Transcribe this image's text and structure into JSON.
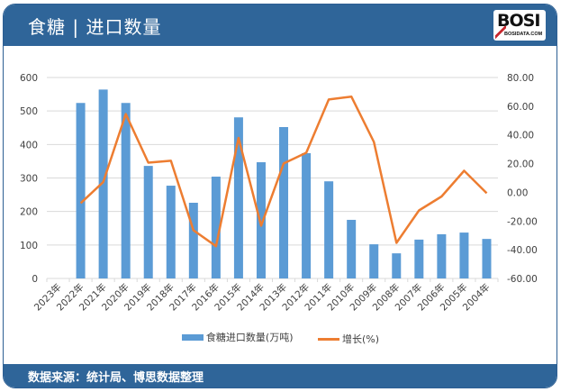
{
  "header": {
    "title": "食糖 | 进口数量",
    "logo_text": "BOSI",
    "logo_subtext": "BOSIDATA.COM"
  },
  "footer": {
    "source": "数据来源：统计局、博思数据整理"
  },
  "legend": {
    "bar_label": "食糖进口数量(万吨)",
    "line_label": "增长(%)"
  },
  "colors": {
    "header": "#2f6599",
    "bar": "#5b9bd5",
    "line": "#ed7d31",
    "grid": "#d9d9d9"
  },
  "chart_data": {
    "type": "bar+line",
    "title": "食糖 | 进口数量",
    "categories": [
      "2023年",
      "2022年",
      "2021年",
      "2020年",
      "2019年",
      "2018年",
      "2017年",
      "2016年",
      "2015年",
      "2014年",
      "2013年",
      "2012年",
      "2011年",
      "2010年",
      "2009年",
      "2008年",
      "2007年",
      "2006年",
      "2005年",
      "2004年"
    ],
    "series": [
      {
        "name": "食糖进口数量(万吨)",
        "type": "bar",
        "axis": "left",
        "values": [
          null,
          524,
          564,
          524,
          336,
          277,
          226,
          304,
          481,
          347,
          452,
          374,
          290,
          175,
          102,
          75,
          116,
          132,
          137,
          118
        ]
      },
      {
        "name": "增长(%)",
        "type": "line",
        "axis": "right",
        "values": [
          null,
          -7.5,
          7.1,
          54.6,
          20.7,
          22.0,
          -26.4,
          -37.5,
          37.9,
          -23.2,
          20.1,
          27.6,
          64.7,
          66.7,
          35.1,
          -35.2,
          -12.6,
          -2.9,
          15.0,
          -0.6
        ]
      }
    ],
    "left_axis": {
      "ticks": [
        "0",
        "100",
        "200",
        "300",
        "400",
        "500",
        "600"
      ],
      "ylim": [
        0,
        600
      ]
    },
    "right_axis": {
      "ticks": [
        "-60.00",
        "-40.00",
        "-20.00",
        "0.00",
        "20.00",
        "40.00",
        "60.00",
        "80.00"
      ],
      "ylim": [
        -60,
        80
      ]
    },
    "xlabel": "",
    "ylabel": "",
    "grid": true,
    "legend_position": "bottom"
  }
}
